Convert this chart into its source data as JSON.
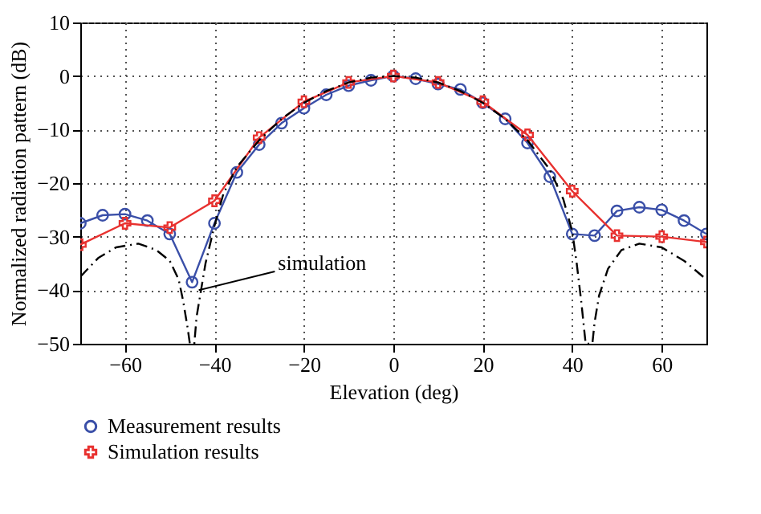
{
  "chart_data": {
    "type": "line",
    "xlabel": "Elevation (deg)",
    "ylabel": "Normalized radiation pattern (dB)",
    "xlim": [
      -70,
      70
    ],
    "ylim": [
      -50,
      10
    ],
    "xticks": [
      -60,
      -40,
      -20,
      0,
      20,
      40,
      60
    ],
    "yticks": [
      -50,
      -40,
      -30,
      -20,
      -10,
      0,
      10
    ],
    "grid": true,
    "legend": "bottom",
    "series": [
      {
        "name": "Measurement results",
        "color": "#3a4fa8",
        "marker": "circle",
        "line_style": "solid",
        "x": [
          -70,
          -65,
          -60,
          -55,
          -50,
          -45,
          -40,
          -35,
          -30,
          -25,
          -20,
          -15,
          -10,
          -5,
          0,
          5,
          10,
          15,
          20,
          25,
          30,
          35,
          40,
          45,
          50,
          55,
          60,
          65,
          70
        ],
        "values": [
          -27.5,
          -26,
          -25.8,
          -27,
          -29.5,
          -38.5,
          -27.5,
          -18,
          -12.8,
          -8.8,
          -6,
          -3.5,
          -1.8,
          -0.8,
          0,
          -0.5,
          -1.5,
          -2.5,
          -5,
          -8,
          -12.5,
          -18.8,
          -29.5,
          -29.8,
          -25.2,
          -24.5,
          -25,
          -27,
          -29.5
        ]
      },
      {
        "name": "Simulation results",
        "color": "#e8312f",
        "marker": "cross",
        "line_style": "solid",
        "x": [
          -70,
          -60,
          -50,
          -40,
          -30,
          -20,
          -10,
          0,
          10,
          20,
          30,
          40,
          50,
          60,
          70
        ],
        "values": [
          -31.5,
          -27.5,
          -28.3,
          -23.3,
          -11.5,
          -4.8,
          -1.2,
          0,
          -1.2,
          -4.8,
          -11,
          -21.5,
          -29.8,
          -30,
          -31
        ]
      },
      {
        "color": "#000000",
        "marker": "none",
        "line_style": "dashed",
        "x": [
          -70,
          -66,
          -62,
          -57,
          -53,
          -50,
          -48,
          -47,
          -46,
          -45.5,
          -44.5,
          -44,
          -43,
          -42,
          -40,
          -38,
          -35,
          -30,
          -25,
          -20,
          -15,
          -10,
          -5,
          0,
          5,
          10,
          15,
          20,
          25,
          30,
          35,
          38,
          40,
          41,
          42,
          43,
          44.5,
          45,
          46,
          48,
          51,
          55,
          60,
          65,
          70
        ],
        "values": [
          -37.5,
          -34,
          -32,
          -31.3,
          -32.5,
          -34.5,
          -38,
          -42,
          -47,
          -50,
          -50,
          -45,
          -40,
          -35,
          -28,
          -22,
          -17,
          -12,
          -8,
          -5,
          -2.8,
          -1.2,
          -0.3,
          0,
          -0.3,
          -1.2,
          -2.8,
          -5,
          -8,
          -12,
          -17.5,
          -23,
          -29,
          -35,
          -42,
          -50,
          -50,
          -46,
          -41,
          -36,
          -32.5,
          -31.3,
          -32,
          -34.5,
          -38
        ]
      }
    ],
    "annotations": [
      {
        "text": "simulation",
        "x": -43.5,
        "y": -40
      }
    ]
  }
}
